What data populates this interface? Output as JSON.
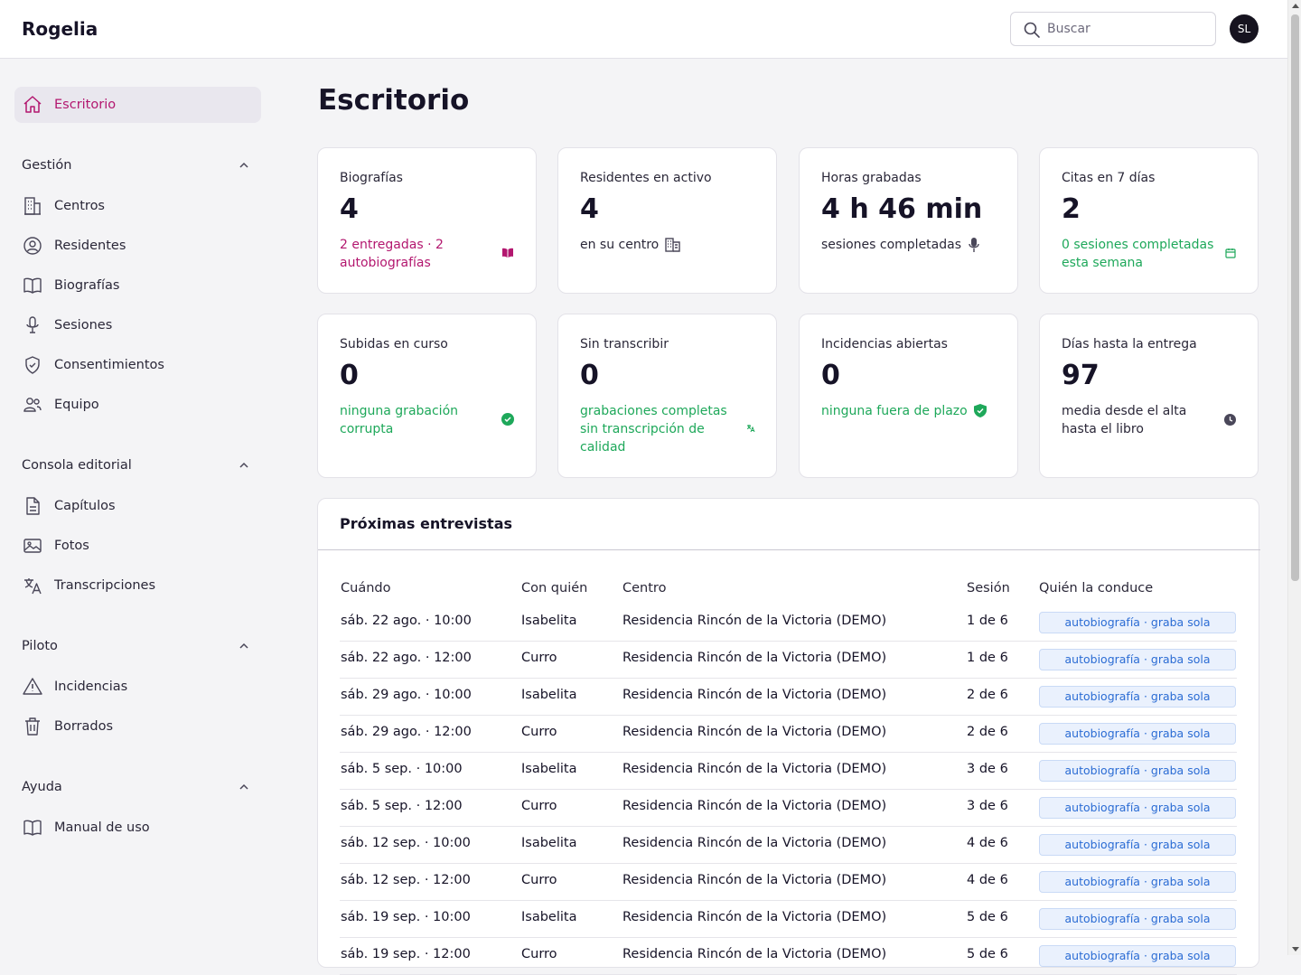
{
  "app": {
    "title": "Rogelia"
  },
  "header": {
    "search_placeholder": "Buscar",
    "avatar_initials": "SL"
  },
  "sidebar": {
    "top_item": {
      "label": "Escritorio",
      "icon": "home-icon"
    },
    "sections": [
      {
        "title": "Gestión",
        "items": [
          {
            "label": "Centros",
            "icon": "building-icon"
          },
          {
            "label": "Residentes",
            "icon": "user-circle-icon"
          },
          {
            "label": "Biografías",
            "icon": "book-icon"
          },
          {
            "label": "Sesiones",
            "icon": "microphone-icon"
          },
          {
            "label": "Consentimientos",
            "icon": "shield-icon"
          },
          {
            "label": "Equipo",
            "icon": "team-icon"
          }
        ]
      },
      {
        "title": "Consola editorial",
        "items": [
          {
            "label": "Capítulos",
            "icon": "document-icon"
          },
          {
            "label": "Fotos",
            "icon": "photo-icon"
          },
          {
            "label": "Transcripciones",
            "icon": "translate-icon"
          }
        ]
      },
      {
        "title": "Piloto",
        "items": [
          {
            "label": "Incidencias",
            "icon": "warning-icon"
          },
          {
            "label": "Borrados",
            "icon": "trash-icon"
          }
        ]
      },
      {
        "title": "Ayuda",
        "items": [
          {
            "label": "Manual de uso",
            "icon": "book-icon"
          }
        ]
      }
    ]
  },
  "main": {
    "title": "Escritorio",
    "cards": [
      {
        "label": "Biografías",
        "value": "4",
        "sub": "2 entregadas · 2 autobiografías",
        "sub_color": "#b3176f",
        "icon": "book-open-icon"
      },
      {
        "label": "Residentes en activo",
        "value": "4",
        "sub": "en su centro",
        "sub_color": "#2a2738",
        "icon": "building-icon"
      },
      {
        "label": "Horas grabadas",
        "value": "4 h 46 min",
        "sub": "sesiones completadas",
        "sub_color": "#2a2738",
        "icon": "microphone-icon"
      },
      {
        "label": "Citas en 7 días",
        "value": "2",
        "sub": "0 sesiones completadas esta semana",
        "sub_color": "#1ea85a",
        "icon": "calendar-icon"
      },
      {
        "label": "Subidas en curso",
        "value": "0",
        "sub": "ninguna grabación corrupta",
        "sub_color": "#1ea85a",
        "icon": "check-circle-icon"
      },
      {
        "label": "Sin transcribir",
        "value": "0",
        "sub": "grabaciones completas sin transcripción de calidad",
        "sub_color": "#1ea85a",
        "icon": "translate-icon"
      },
      {
        "label": "Incidencias abiertas",
        "value": "0",
        "sub": "ninguna fuera de plazo",
        "sub_color": "#1ea85a",
        "icon": "shield-check-icon"
      },
      {
        "label": "Días hasta la entrega",
        "value": "97",
        "sub": "media desde el alta hasta el libro",
        "sub_color": "#2a2738",
        "icon": "clock-icon"
      }
    ],
    "interviews": {
      "title": "Próximas entrevistas",
      "columns": [
        "Cuándo",
        "Con quién",
        "Centro",
        "Sesión",
        "Quién la conduce"
      ],
      "rows": [
        {
          "when": "sáb. 22 ago. · 10:00",
          "who": "Isabelita",
          "center": "Residencia Rincón de la Victoria (DEMO)",
          "session": "1 de 6",
          "conductor": "autobiografía · graba sola"
        },
        {
          "when": "sáb. 22 ago. · 12:00",
          "who": "Curro",
          "center": "Residencia Rincón de la Victoria (DEMO)",
          "session": "1 de 6",
          "conductor": "autobiografía · graba sola"
        },
        {
          "when": "sáb. 29 ago. · 10:00",
          "who": "Isabelita",
          "center": "Residencia Rincón de la Victoria (DEMO)",
          "session": "2 de 6",
          "conductor": "autobiografía · graba sola"
        },
        {
          "when": "sáb. 29 ago. · 12:00",
          "who": "Curro",
          "center": "Residencia Rincón de la Victoria (DEMO)",
          "session": "2 de 6",
          "conductor": "autobiografía · graba sola"
        },
        {
          "when": "sáb. 5 sep. · 10:00",
          "who": "Isabelita",
          "center": "Residencia Rincón de la Victoria (DEMO)",
          "session": "3 de 6",
          "conductor": "autobiografía · graba sola"
        },
        {
          "when": "sáb. 5 sep. · 12:00",
          "who": "Curro",
          "center": "Residencia Rincón de la Victoria (DEMO)",
          "session": "3 de 6",
          "conductor": "autobiografía · graba sola"
        },
        {
          "when": "sáb. 12 sep. · 10:00",
          "who": "Isabelita",
          "center": "Residencia Rincón de la Victoria (DEMO)",
          "session": "4 de 6",
          "conductor": "autobiografía · graba sola"
        },
        {
          "when": "sáb. 12 sep. · 12:00",
          "who": "Curro",
          "center": "Residencia Rincón de la Victoria (DEMO)",
          "session": "4 de 6",
          "conductor": "autobiografía · graba sola"
        },
        {
          "when": "sáb. 19 sep. · 10:00",
          "who": "Isabelita",
          "center": "Residencia Rincón de la Victoria (DEMO)",
          "session": "5 de 6",
          "conductor": "autobiografía · graba sola"
        },
        {
          "when": "sáb. 19 sep. · 12:00",
          "who": "Curro",
          "center": "Residencia Rincón de la Victoria (DEMO)",
          "session": "5 de 6",
          "conductor": "autobiografía · graba sola"
        }
      ]
    }
  }
}
